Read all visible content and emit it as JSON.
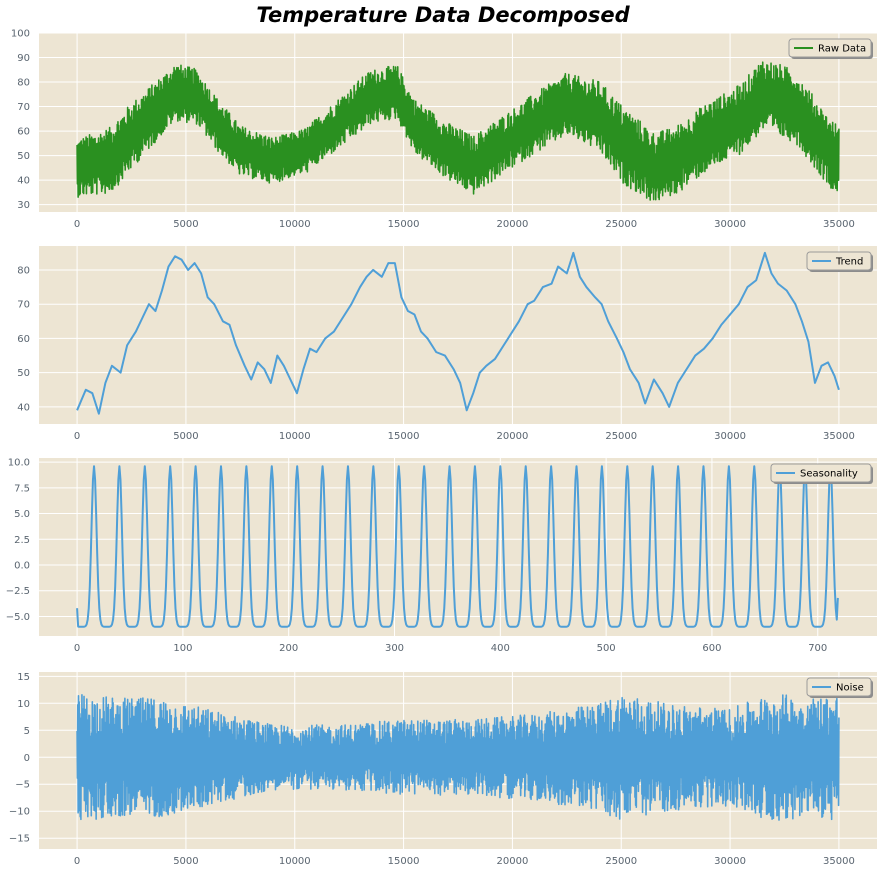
{
  "title": "Temperature Data Decomposed",
  "colors": {
    "background": "#ede5d3",
    "grid": "#ffffff",
    "tick_text": "#5a6570",
    "raw": "#2a9020",
    "component": "#4f9fd7"
  },
  "chart_data": [
    {
      "type": "line",
      "name": "raw-data",
      "legend": "Raw Data",
      "legend_position": "top-right",
      "grid": true,
      "color": "#2a9020",
      "xlim": [
        -1750,
        36750
      ],
      "ylim": [
        27,
        100
      ],
      "xticks": [
        0,
        5000,
        10000,
        15000,
        20000,
        25000,
        30000,
        35000
      ],
      "xtick_labels": [
        "0",
        "5000",
        "10000",
        "15000",
        "20000",
        "25000",
        "30000",
        "35000"
      ],
      "yticks": [
        30,
        40,
        50,
        60,
        70,
        80,
        90,
        100
      ],
      "ytick_labels": [
        "30",
        "40",
        "50",
        "60",
        "70",
        "80",
        "90",
        "100"
      ],
      "x_range": [
        0,
        35000
      ],
      "center_keys": [
        [
          0,
          45
        ],
        [
          1500,
          48
        ],
        [
          2500,
          58
        ],
        [
          4500,
          76
        ],
        [
          5500,
          74
        ],
        [
          6500,
          62
        ],
        [
          7500,
          52
        ],
        [
          9000,
          48
        ],
        [
          10500,
          52
        ],
        [
          12000,
          63
        ],
        [
          13500,
          74
        ],
        [
          14700,
          76
        ],
        [
          15500,
          62
        ],
        [
          17000,
          52
        ],
        [
          18200,
          46
        ],
        [
          19500,
          54
        ],
        [
          21000,
          63
        ],
        [
          22500,
          71
        ],
        [
          24000,
          66
        ],
        [
          25000,
          55
        ],
        [
          26500,
          45
        ],
        [
          27500,
          48
        ],
        [
          29000,
          58
        ],
        [
          30500,
          65
        ],
        [
          31500,
          75
        ],
        [
          33000,
          70
        ],
        [
          34500,
          52
        ],
        [
          35000,
          48
        ]
      ],
      "band_keys": [
        [
          0,
          12
        ],
        [
          2000,
          14
        ],
        [
          4000,
          12
        ],
        [
          6000,
          11
        ],
        [
          8000,
          10
        ],
        [
          10000,
          9
        ],
        [
          13000,
          11
        ],
        [
          15000,
          11
        ],
        [
          18000,
          12
        ],
        [
          20000,
          12
        ],
        [
          23000,
          13
        ],
        [
          25000,
          16
        ],
        [
          27000,
          14
        ],
        [
          30000,
          14
        ],
        [
          32000,
          15
        ],
        [
          35000,
          14
        ]
      ]
    },
    {
      "type": "line",
      "name": "trend",
      "legend": "Trend",
      "legend_position": "top-right",
      "grid": true,
      "color": "#4f9fd7",
      "xlim": [
        -1750,
        36750
      ],
      "ylim": [
        35,
        87
      ],
      "xticks": [
        0,
        5000,
        10000,
        15000,
        20000,
        25000,
        30000,
        35000
      ],
      "xtick_labels": [
        "0",
        "5000",
        "10000",
        "15000",
        "20000",
        "25000",
        "30000",
        "35000"
      ],
      "yticks": [
        40,
        50,
        60,
        70,
        80
      ],
      "ytick_labels": [
        "40",
        "50",
        "60",
        "70",
        "80"
      ],
      "x_range": [
        0,
        35000
      ],
      "points": [
        [
          0,
          39
        ],
        [
          200,
          42
        ],
        [
          400,
          45
        ],
        [
          700,
          44
        ],
        [
          1000,
          38
        ],
        [
          1300,
          47
        ],
        [
          1600,
          52
        ],
        [
          2000,
          50
        ],
        [
          2300,
          58
        ],
        [
          2700,
          62
        ],
        [
          3000,
          66
        ],
        [
          3300,
          70
        ],
        [
          3600,
          68
        ],
        [
          3900,
          74
        ],
        [
          4200,
          81
        ],
        [
          4500,
          84
        ],
        [
          4800,
          83
        ],
        [
          5100,
          80
        ],
        [
          5400,
          82
        ],
        [
          5700,
          79
        ],
        [
          6000,
          72
        ],
        [
          6300,
          70
        ],
        [
          6700,
          65
        ],
        [
          7000,
          64
        ],
        [
          7300,
          58
        ],
        [
          7700,
          52
        ],
        [
          8000,
          48
        ],
        [
          8300,
          53
        ],
        [
          8600,
          51
        ],
        [
          8900,
          47
        ],
        [
          9200,
          55
        ],
        [
          9500,
          52
        ],
        [
          9800,
          48
        ],
        [
          10100,
          44
        ],
        [
          10400,
          51
        ],
        [
          10700,
          57
        ],
        [
          11000,
          56
        ],
        [
          11400,
          60
        ],
        [
          11800,
          62
        ],
        [
          12200,
          66
        ],
        [
          12600,
          70
        ],
        [
          13000,
          75
        ],
        [
          13300,
          78
        ],
        [
          13600,
          80
        ],
        [
          14000,
          78
        ],
        [
          14300,
          82
        ],
        [
          14600,
          82
        ],
        [
          14900,
          72
        ],
        [
          15200,
          68
        ],
        [
          15500,
          67
        ],
        [
          15800,
          62
        ],
        [
          16100,
          60
        ],
        [
          16500,
          56
        ],
        [
          16900,
          55
        ],
        [
          17300,
          51
        ],
        [
          17600,
          47
        ],
        [
          17900,
          39
        ],
        [
          18200,
          44
        ],
        [
          18500,
          50
        ],
        [
          18800,
          52
        ],
        [
          19200,
          54
        ],
        [
          19600,
          58
        ],
        [
          20000,
          62
        ],
        [
          20300,
          65
        ],
        [
          20700,
          70
        ],
        [
          21000,
          71
        ],
        [
          21400,
          75
        ],
        [
          21800,
          76
        ],
        [
          22100,
          81
        ],
        [
          22500,
          79
        ],
        [
          22800,
          85
        ],
        [
          23100,
          78
        ],
        [
          23400,
          75
        ],
        [
          23800,
          72
        ],
        [
          24100,
          70
        ],
        [
          24400,
          65
        ],
        [
          24800,
          60
        ],
        [
          25100,
          56
        ],
        [
          25400,
          51
        ],
        [
          25800,
          47
        ],
        [
          26100,
          41
        ],
        [
          26500,
          48
        ],
        [
          26900,
          44
        ],
        [
          27200,
          40
        ],
        [
          27600,
          47
        ],
        [
          28000,
          51
        ],
        [
          28400,
          55
        ],
        [
          28800,
          57
        ],
        [
          29200,
          60
        ],
        [
          29600,
          64
        ],
        [
          30000,
          67
        ],
        [
          30400,
          70
        ],
        [
          30800,
          75
        ],
        [
          31200,
          77
        ],
        [
          31600,
          85
        ],
        [
          31900,
          79
        ],
        [
          32200,
          76
        ],
        [
          32600,
          74
        ],
        [
          33000,
          70
        ],
        [
          33300,
          65
        ],
        [
          33600,
          59
        ],
        [
          33900,
          47
        ],
        [
          34200,
          52
        ],
        [
          34500,
          53
        ],
        [
          34800,
          49
        ],
        [
          35000,
          45
        ]
      ]
    },
    {
      "type": "line",
      "name": "seasonality",
      "legend": "Seasonality",
      "legend_position": "top-right",
      "grid": true,
      "color": "#4f9fd7",
      "xlim": [
        -36,
        756
      ],
      "ylim": [
        -6.9,
        10.4
      ],
      "xticks": [
        0,
        100,
        200,
        300,
        400,
        500,
        600,
        700
      ],
      "xtick_labels": [
        "0",
        "100",
        "200",
        "300",
        "400",
        "500",
        "600",
        "700"
      ],
      "yticks": [
        -5.0,
        -2.5,
        0.0,
        2.5,
        5.0,
        7.5,
        10.0
      ],
      "ytick_labels": [
        "−5.0",
        "−2.5",
        "0.0",
        "2.5",
        "5.0",
        "7.5",
        "10.0"
      ],
      "x_range": [
        0,
        719
      ],
      "period": 24,
      "min": -6.0,
      "max": 9.6,
      "peak_offset": 16,
      "start_value": -4.2,
      "end_value": -3.2
    },
    {
      "type": "line",
      "name": "noise",
      "legend": "Noise",
      "legend_position": "top-right",
      "grid": true,
      "color": "#4f9fd7",
      "xlim": [
        -1750,
        36750
      ],
      "ylim": [
        -17,
        15.8
      ],
      "xticks": [
        0,
        5000,
        10000,
        15000,
        20000,
        25000,
        30000,
        35000
      ],
      "xtick_labels": [
        "0",
        "5000",
        "10000",
        "15000",
        "20000",
        "25000",
        "30000",
        "35000"
      ],
      "yticks": [
        -15,
        -10,
        -5,
        0,
        5,
        10,
        15
      ],
      "ytick_labels": [
        "−15",
        "−10",
        "−5",
        "0",
        "5",
        "10",
        "15"
      ],
      "x_range": [
        0,
        35000
      ],
      "center": 0,
      "band_keys": [
        [
          0,
          12
        ],
        [
          2000,
          11
        ],
        [
          4000,
          11
        ],
        [
          6000,
          9
        ],
        [
          9000,
          6
        ],
        [
          12000,
          6
        ],
        [
          15000,
          7
        ],
        [
          18000,
          7
        ],
        [
          21000,
          8
        ],
        [
          24000,
          10
        ],
        [
          25000,
          12
        ],
        [
          27000,
          10
        ],
        [
          30000,
          9
        ],
        [
          32000,
          12
        ],
        [
          33500,
          11
        ],
        [
          35000,
          12
        ]
      ]
    }
  ]
}
